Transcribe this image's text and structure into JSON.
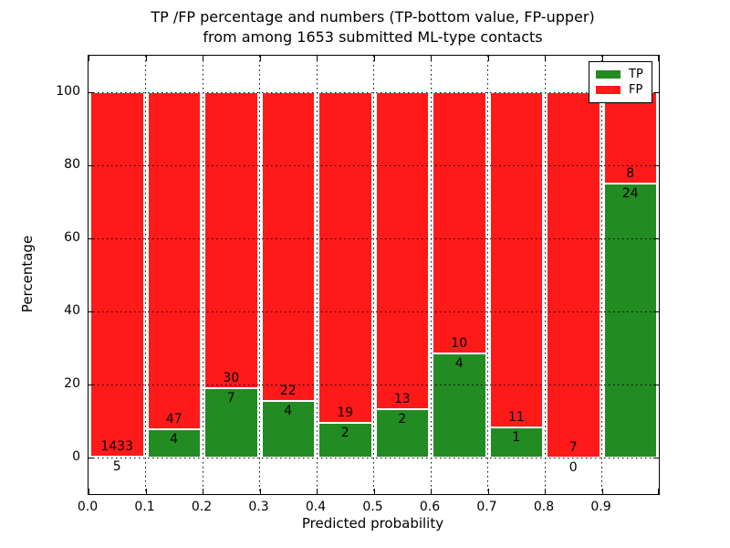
{
  "title": {
    "line1": "TP /FP percentage and numbers (TP-bottom value, FP-upper)",
    "line2": "from among 1653 submitted ML-type contacts"
  },
  "axes": {
    "ylabel": "Percentage",
    "xlabel": "Predicted probability",
    "yticks": [
      0,
      20,
      40,
      60,
      80,
      100
    ],
    "xticks": [
      "0.0",
      "0.1",
      "0.2",
      "0.3",
      "0.4",
      "0.5",
      "0.6",
      "0.7",
      "0.8",
      "0.9"
    ],
    "ylim": [
      -10,
      110
    ],
    "xlim": [
      0,
      1
    ]
  },
  "legend": {
    "items": [
      {
        "label": "TP",
        "color": "#228b22"
      },
      {
        "label": "FP",
        "color": "#ff1a1a"
      }
    ]
  },
  "colors": {
    "tp": "#228b22",
    "fp": "#ff1a1a",
    "grid": "#000000",
    "spine": "#000000",
    "bar_edge": "#ffffff",
    "background": "#ffffff"
  },
  "chart_data": {
    "type": "bar",
    "stacked": true,
    "normalized_to_percent": 100,
    "title": "TP /FP percentage and numbers (TP-bottom value, FP-upper) from among 1653 submitted ML-type contacts",
    "xlabel": "Predicted probability",
    "ylabel": "Percentage",
    "total_submitted": 1653,
    "bin_width": 0.1,
    "categories": [
      "0.0-0.1",
      "0.1-0.2",
      "0.2-0.3",
      "0.3-0.4",
      "0.4-0.5",
      "0.5-0.6",
      "0.6-0.7",
      "0.7-0.8",
      "0.8-0.9",
      "0.9-1.0"
    ],
    "series": [
      {
        "name": "TP",
        "color": "#228b22",
        "counts": [
          5,
          4,
          7,
          4,
          2,
          2,
          4,
          1,
          0,
          24
        ]
      },
      {
        "name": "FP",
        "color": "#ff1a1a",
        "counts": [
          1433,
          47,
          30,
          22,
          19,
          13,
          10,
          11,
          7,
          8
        ]
      }
    ],
    "tp_percent": [
      0.35,
      7.84,
      18.92,
      15.38,
      9.52,
      13.33,
      28.57,
      8.33,
      0.0,
      75.0
    ],
    "ylim": [
      -10,
      110
    ],
    "grid": true,
    "grid_style": "dotted",
    "legend_position": "upper right"
  }
}
